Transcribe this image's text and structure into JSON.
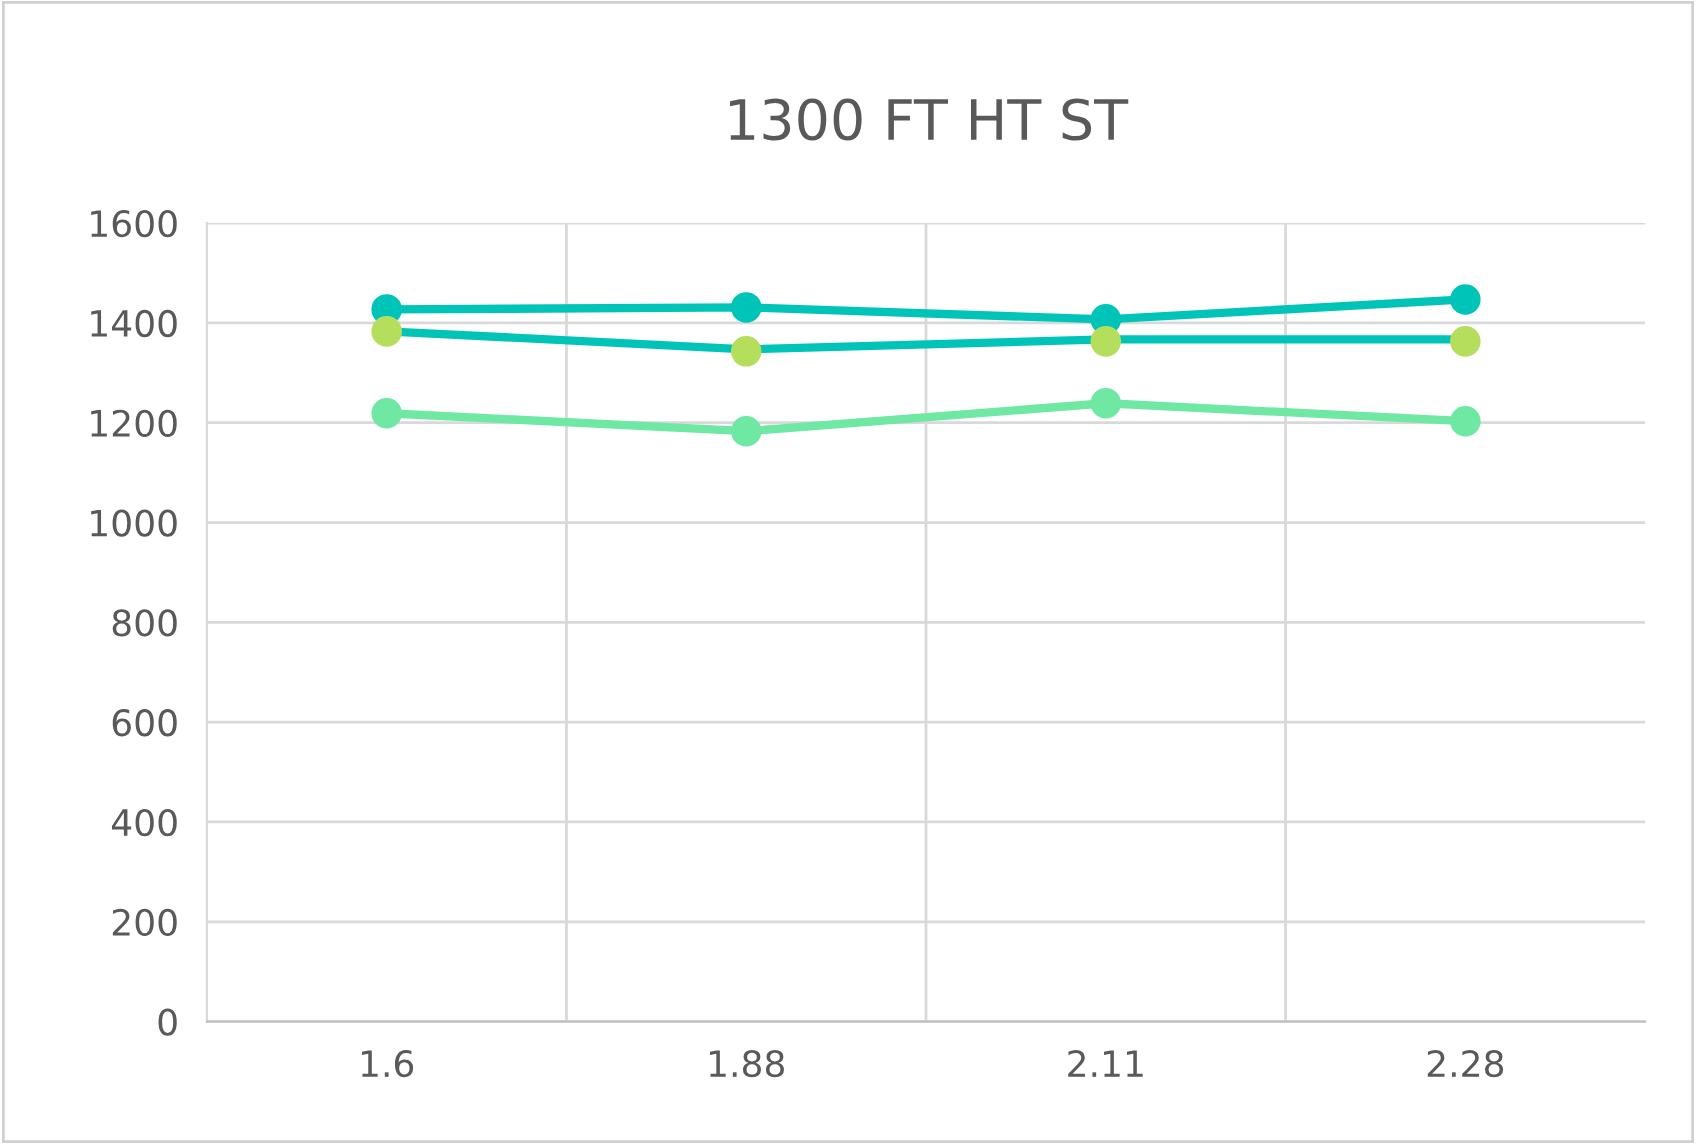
{
  "chart_data": {
    "type": "line",
    "title": "1300 FT HT ST",
    "categories": [
      "1.6",
      "1.88",
      "2.11",
      "2.28"
    ],
    "series": [
      {
        "color": "#00c4b8",
        "values": [
          1427,
          1431,
          1407,
          1447
        ],
        "marker": "circle"
      },
      {
        "color": "#00c4b8",
        "values": [
          1383,
          1347,
          1367,
          1367
        ],
        "marker": "none"
      },
      {
        "type": "scatter",
        "color": "#b5de5c",
        "values": [
          1383,
          1343,
          1363,
          1363
        ],
        "marker": "circle"
      },
      {
        "color": "#6ee8a2",
        "values": [
          1219,
          1183,
          1239,
          1203
        ],
        "marker": "circle"
      }
    ],
    "ylim": [
      0,
      1600
    ],
    "yticks": [
      0,
      200,
      400,
      600,
      800,
      1000,
      1200,
      1400,
      1600
    ],
    "grid": true,
    "legend": false
  }
}
